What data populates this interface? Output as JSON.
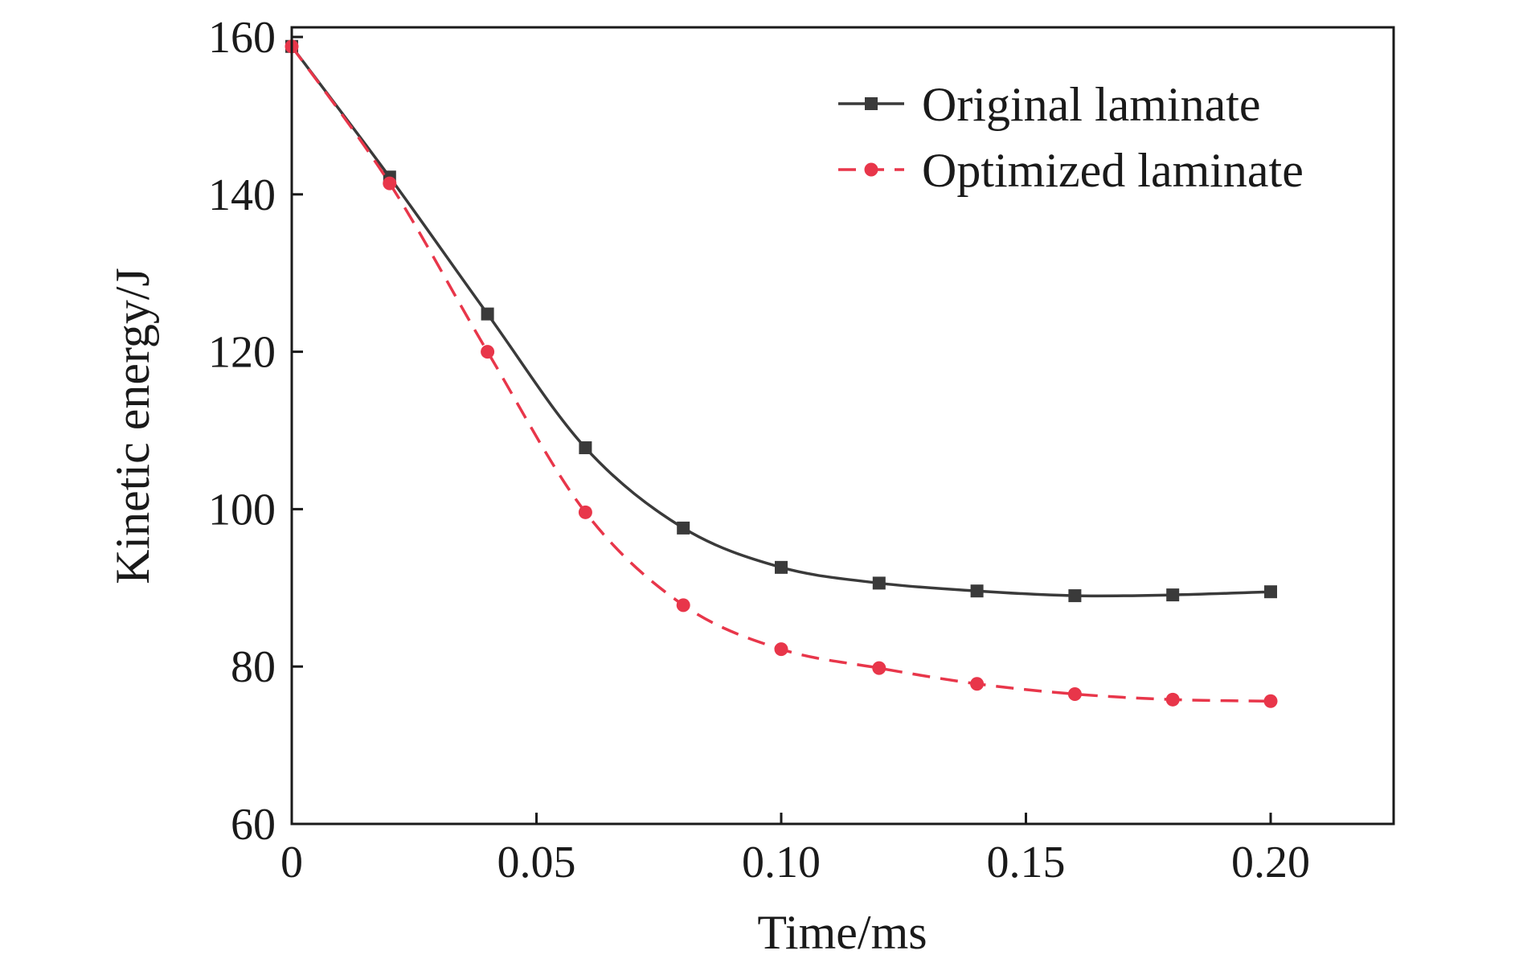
{
  "chart_data": {
    "type": "line",
    "title": "",
    "xlabel": "Time/ms",
    "ylabel": "Kinetic energy/J",
    "xlim": [
      0,
      0.225
    ],
    "ylim": [
      60,
      160
    ],
    "xticks": [
      0,
      0.05,
      0.1,
      0.15,
      0.2
    ],
    "xtick_labels": [
      "0",
      "0.05",
      "0.10",
      "0.15",
      "0.20"
    ],
    "yticks": [
      60,
      80,
      100,
      120,
      140,
      160
    ],
    "ytick_labels": [
      "60",
      "80",
      "100",
      "120",
      "140",
      "160"
    ],
    "grid": false,
    "legend_position": "top-right",
    "series": [
      {
        "name": "Original laminate",
        "color": "#3a3a3a",
        "line_style": "solid",
        "marker": "square",
        "x": [
          0,
          0.02,
          0.04,
          0.06,
          0.08,
          0.1,
          0.12,
          0.14,
          0.16,
          0.18,
          0.2
        ],
        "y": [
          158.8,
          142.2,
          124.8,
          107.8,
          97.6,
          92.6,
          90.6,
          89.6,
          89.0,
          89.1,
          89.5
        ]
      },
      {
        "name": "Optimized laminate",
        "color": "#e8364a",
        "line_style": "dashed",
        "marker": "circle",
        "x": [
          0,
          0.02,
          0.04,
          0.06,
          0.08,
          0.1,
          0.12,
          0.14,
          0.16,
          0.18,
          0.2
        ],
        "y": [
          158.8,
          141.4,
          120.0,
          99.6,
          87.8,
          82.2,
          79.8,
          77.8,
          76.5,
          75.8,
          75.6
        ]
      }
    ]
  }
}
